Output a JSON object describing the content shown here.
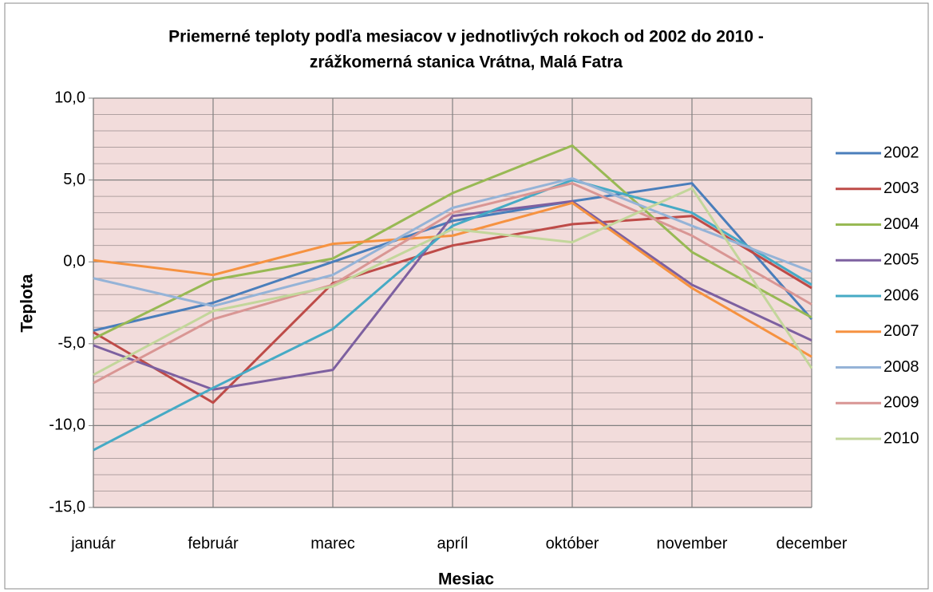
{
  "chart_data": {
    "type": "line",
    "title": [
      "Priemerné teploty podľa mesiacov v jednotlivých rokoch od 2002 do 2010 -",
      "zrážkomerná stanica Vrátna, Malá Fatra"
    ],
    "x_label": "Mesiac",
    "y_label": "Teplota",
    "categories": [
      "január",
      "február",
      "marec",
      "apríl",
      "október",
      "november",
      "december"
    ],
    "series": [
      {
        "name": "2002",
        "color": "#4a7ebb",
        "values": [
          -4.2,
          -2.5,
          0.0,
          2.5,
          3.7,
          4.8,
          -3.5
        ]
      },
      {
        "name": "2003",
        "color": "#be4b48",
        "values": [
          -4.3,
          -8.6,
          -1.3,
          1.0,
          2.3,
          2.8,
          -1.6
        ]
      },
      {
        "name": "2004",
        "color": "#98b954",
        "values": [
          -4.7,
          -1.1,
          0.2,
          4.2,
          7.1,
          0.6,
          -3.4
        ]
      },
      {
        "name": "2005",
        "color": "#7d60a0",
        "values": [
          -5.1,
          -7.8,
          -6.6,
          2.8,
          3.7,
          -1.4,
          -4.8
        ]
      },
      {
        "name": "2006",
        "color": "#46aac5",
        "values": [
          -11.5,
          -7.7,
          -4.1,
          2.2,
          5.0,
          3.0,
          -1.4
        ]
      },
      {
        "name": "2007",
        "color": "#f69240",
        "values": [
          0.1,
          -0.8,
          1.1,
          1.6,
          3.6,
          -1.6,
          -5.8
        ]
      },
      {
        "name": "2008",
        "color": "#95b3d7",
        "values": [
          -1.0,
          -2.7,
          -0.8,
          3.3,
          5.1,
          2.2,
          -0.6
        ]
      },
      {
        "name": "2009",
        "color": "#d99694",
        "values": [
          -7.4,
          -3.5,
          -1.4,
          3.0,
          4.8,
          1.6,
          -2.6
        ]
      },
      {
        "name": "2010",
        "color": "#c3d69b",
        "values": [
          -6.9,
          -3.0,
          -1.5,
          2.0,
          1.2,
          4.5,
          -6.5
        ]
      }
    ],
    "ylim": [
      -15,
      10
    ],
    "yticks": [
      {
        "value": -15,
        "label": "-15,0"
      },
      {
        "value": -10,
        "label": "-10,0"
      },
      {
        "value": -5,
        "label": "-5,0"
      },
      {
        "value": 0,
        "label": "0,0"
      },
      {
        "value": 5,
        "label": "5,0"
      },
      {
        "value": 10,
        "label": "10,0"
      }
    ],
    "minor_yticks": [
      -14,
      -13,
      -12,
      -11,
      -9,
      -8,
      -7,
      -6,
      -4,
      -3,
      -2,
      -1,
      1,
      2,
      3,
      4,
      6,
      7,
      8,
      9
    ],
    "grid": true,
    "plot_background": "#f2dcdb",
    "legend": "right"
  }
}
